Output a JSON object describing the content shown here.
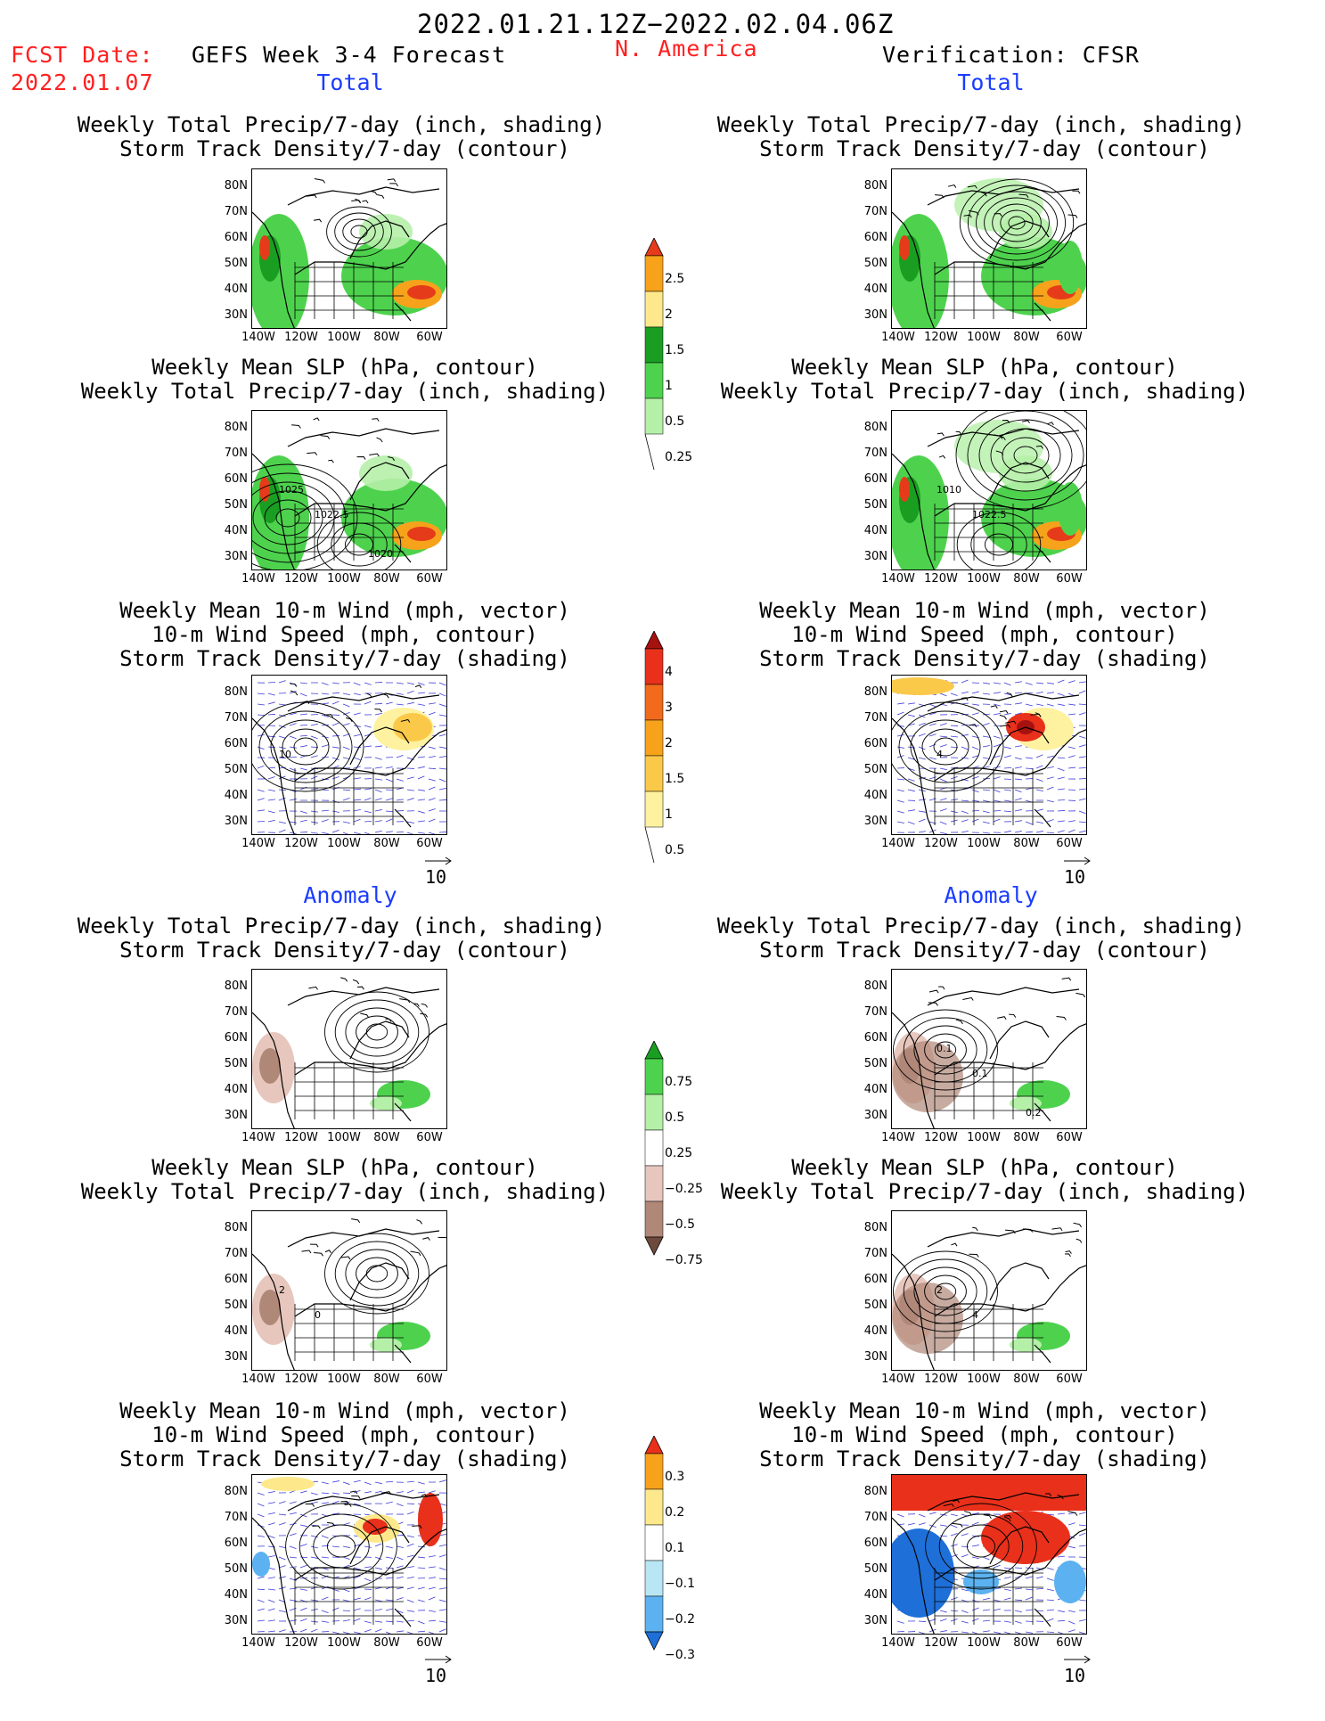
{
  "header": {
    "date_range": "2022.01.21.12Z−2022.02.04.06Z",
    "fcst_label": "FCST Date:",
    "fcst_date": "2022.01.07",
    "forecast_title": "GEFS Week 3-4 Forecast",
    "region": "N. America",
    "verification": "Verification: CFSR"
  },
  "sections": {
    "total": "Total",
    "anomaly": "Anomaly"
  },
  "panel_titles": {
    "precip_storm": [
      "Weekly Total Precip/7-day (inch, shading)",
      "Storm Track Density/7-day (contour)"
    ],
    "slp_precip": [
      "Weekly Mean SLP (hPa, contour)",
      "Weekly Total Precip/7-day (inch, shading)"
    ],
    "wind_storm": [
      "Weekly Mean 10-m Wind (mph, vector)",
      "10-m Wind Speed (mph, contour)",
      "Storm Track Density/7-day (shading)"
    ]
  },
  "axes": {
    "lat_labels": [
      "80N",
      "70N",
      "60N",
      "50N",
      "40N",
      "30N"
    ],
    "lon_labels": [
      "140W",
      "120W",
      "100W",
      "80W",
      "60W"
    ]
  },
  "vector_ref": "10",
  "map_annotations": {
    "slp_fc": [
      "1025",
      "1022.5",
      "1020"
    ],
    "slp_obs": [
      "1010",
      "1022.5"
    ],
    "wind_fc": [
      "10"
    ],
    "wind_obs": [
      "4"
    ],
    "anom_precip_obs": [
      "0.1",
      "0.1",
      "0.2"
    ],
    "anom_slp_obs": [
      "2",
      "4"
    ],
    "anom_slp_fc": [
      "2",
      "0"
    ]
  },
  "colorbars": {
    "precip_total": {
      "labels": [
        "2.5",
        "2",
        "1.5",
        "1",
        "0.5",
        "0.25"
      ],
      "colors": [
        "#e63b1a",
        "#f7a21b",
        "#fde98b",
        "#1a9e22",
        "#4ed24e",
        "#b5f0a8"
      ]
    },
    "storm_total": {
      "labels": [
        "4",
        "3",
        "2",
        "1.5",
        "1",
        "0.5"
      ],
      "colors": [
        "#a6120f",
        "#e8301b",
        "#f26a1c",
        "#f7a21b",
        "#fbc94a",
        "#fef2a0"
      ]
    },
    "precip_anom": {
      "labels": [
        "0.75",
        "0.5",
        "0.25",
        "−0.25",
        "−0.5",
        "−0.75"
      ],
      "colors": [
        "#1a9e22",
        "#4ed24e",
        "#b5f0a8",
        "#ffffff",
        "#e7c7bd",
        "#b08878",
        "#6e4a3c"
      ]
    },
    "storm_anom": {
      "labels": [
        "0.3",
        "0.2",
        "0.1",
        "−0.1",
        "−0.2",
        "−0.3"
      ],
      "colors": [
        "#e8301b",
        "#f7a21b",
        "#fde98b",
        "#ffffff",
        "#b8e6f5",
        "#5cb2f0",
        "#1e6fd8"
      ]
    }
  }
}
